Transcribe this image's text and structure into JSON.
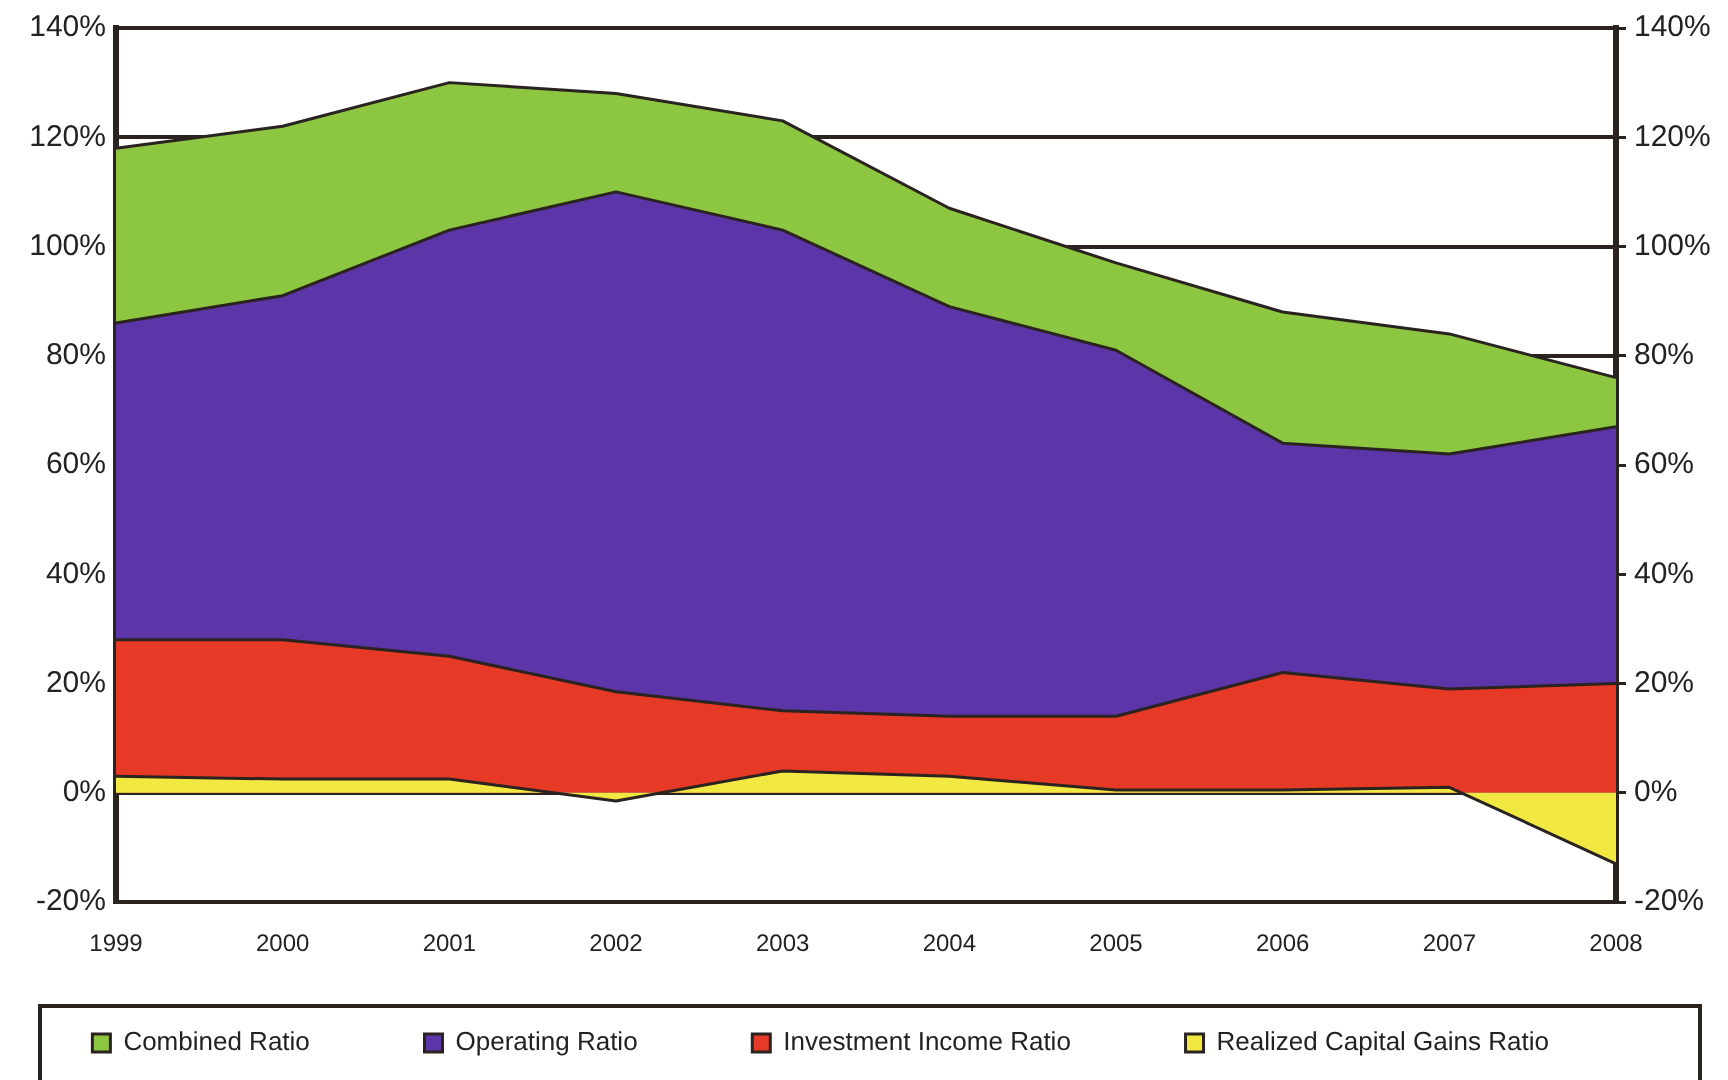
{
  "chart_data": {
    "type": "area",
    "categories": [
      "1999",
      "2000",
      "2001",
      "2002",
      "2003",
      "2004",
      "2005",
      "2006",
      "2007",
      "2008"
    ],
    "series": [
      {
        "name": "Combined Ratio",
        "color": "#8dc641",
        "values": [
          118,
          122,
          130,
          128,
          123,
          107,
          97,
          88,
          84,
          76
        ]
      },
      {
        "name": "Operating Ratio",
        "color": "#5c35a8",
        "values": [
          86,
          91,
          103,
          110,
          103,
          89,
          81,
          64,
          62,
          67
        ]
      },
      {
        "name": "Investment Income Ratio",
        "color": "#e63a26",
        "values": [
          28,
          28,
          25,
          18.5,
          15,
          14,
          14,
          22,
          19,
          20
        ]
      },
      {
        "name": "Realized Capital Gains Ratio",
        "color": "#f2e842",
        "values": [
          3,
          2.5,
          2.5,
          -1.5,
          4,
          3,
          0.5,
          0.5,
          1,
          -13
        ]
      }
    ],
    "ylim": [
      -20,
      140
    ],
    "yticks": [
      {
        "value": -20,
        "label": "-20%"
      },
      {
        "value": 0,
        "label": "0%"
      },
      {
        "value": 20,
        "label": "20%"
      },
      {
        "value": 40,
        "label": "40%"
      },
      {
        "value": 60,
        "label": "60%"
      },
      {
        "value": 80,
        "label": "80%"
      },
      {
        "value": 100,
        "label": "100%"
      },
      {
        "value": 120,
        "label": "120%"
      },
      {
        "value": 140,
        "label": "140%"
      }
    ],
    "y2lim": [
      -20,
      140
    ],
    "y2ticks": [
      {
        "value": -20,
        "label": "-20%"
      },
      {
        "value": 0,
        "label": "0%"
      },
      {
        "value": 20,
        "label": "20%"
      },
      {
        "value": 40,
        "label": "40%"
      },
      {
        "value": 60,
        "label": "60%"
      },
      {
        "value": 80,
        "label": "80%"
      },
      {
        "value": 100,
        "label": "100%"
      },
      {
        "value": 120,
        "label": "120%"
      },
      {
        "value": 140,
        "label": "140%"
      }
    ],
    "grid": "y",
    "legend": "bottom"
  }
}
